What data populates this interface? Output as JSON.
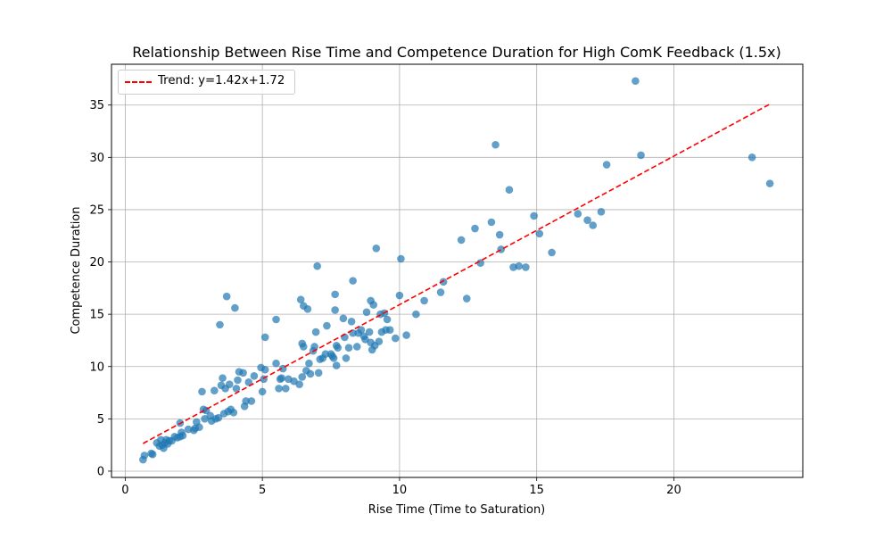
{
  "chart_data": {
    "type": "scatter",
    "title": "Relationship Between Rise Time and Competence Duration for High ComK Feedback (1.5x)",
    "xlabel": "Rise Time (Time to Saturation)",
    "ylabel": "Competence Duration",
    "xlim": [
      -0.5,
      24.7
    ],
    "ylim": [
      -0.6,
      38.9
    ],
    "xticks": [
      0,
      5,
      10,
      15,
      20
    ],
    "yticks": [
      0,
      5,
      10,
      15,
      20,
      25,
      30,
      35
    ],
    "grid": true,
    "legend_position": "top-left",
    "point_color": "#1f77b4",
    "trend": {
      "label": "Trend: y=1.42x+1.72",
      "slope": 1.42,
      "intercept": 1.72,
      "x_range": [
        0.65,
        23.5
      ],
      "color": "#ff0000",
      "style": "dashed"
    },
    "points": [
      [
        0.65,
        1.1
      ],
      [
        0.7,
        1.5
      ],
      [
        0.95,
        1.7
      ],
      [
        1.0,
        1.6
      ],
      [
        1.15,
        2.7
      ],
      [
        1.25,
        2.4
      ],
      [
        1.3,
        3.0
      ],
      [
        1.35,
        2.5
      ],
      [
        1.4,
        2.2
      ],
      [
        1.45,
        2.7
      ],
      [
        1.5,
        3.0
      ],
      [
        1.55,
        2.6
      ],
      [
        1.6,
        2.9
      ],
      [
        1.7,
        2.9
      ],
      [
        1.8,
        3.3
      ],
      [
        1.9,
        3.2
      ],
      [
        2.0,
        3.3
      ],
      [
        2.0,
        4.6
      ],
      [
        2.05,
        3.7
      ],
      [
        2.1,
        3.4
      ],
      [
        2.3,
        4.0
      ],
      [
        2.5,
        3.9
      ],
      [
        2.55,
        4.1
      ],
      [
        2.6,
        4.7
      ],
      [
        2.7,
        4.2
      ],
      [
        2.8,
        7.6
      ],
      [
        2.85,
        5.9
      ],
      [
        2.9,
        5.0
      ],
      [
        2.95,
        5.8
      ],
      [
        3.1,
        5.3
      ],
      [
        3.15,
        4.8
      ],
      [
        3.25,
        7.7
      ],
      [
        3.3,
        5.0
      ],
      [
        3.4,
        5.1
      ],
      [
        3.45,
        14.0
      ],
      [
        3.5,
        8.2
      ],
      [
        3.55,
        8.9
      ],
      [
        3.6,
        5.5
      ],
      [
        3.65,
        7.9
      ],
      [
        3.7,
        16.7
      ],
      [
        3.75,
        5.7
      ],
      [
        3.8,
        8.3
      ],
      [
        3.85,
        5.9
      ],
      [
        3.95,
        5.6
      ],
      [
        4.0,
        15.6
      ],
      [
        4.05,
        7.9
      ],
      [
        4.1,
        8.7
      ],
      [
        4.15,
        9.5
      ],
      [
        4.3,
        9.4
      ],
      [
        4.35,
        6.2
      ],
      [
        4.4,
        6.7
      ],
      [
        4.5,
        8.5
      ],
      [
        4.6,
        6.7
      ],
      [
        4.7,
        9.1
      ],
      [
        4.95,
        9.9
      ],
      [
        5.0,
        7.6
      ],
      [
        5.05,
        8.8
      ],
      [
        5.1,
        9.7
      ],
      [
        5.1,
        12.8
      ],
      [
        5.5,
        10.3
      ],
      [
        5.5,
        14.5
      ],
      [
        5.6,
        7.9
      ],
      [
        5.65,
        8.8
      ],
      [
        5.7,
        8.9
      ],
      [
        5.75,
        9.8
      ],
      [
        5.85,
        7.9
      ],
      [
        5.95,
        8.8
      ],
      [
        6.15,
        8.6
      ],
      [
        6.35,
        8.3
      ],
      [
        6.4,
        16.4
      ],
      [
        6.45,
        9.0
      ],
      [
        6.45,
        12.2
      ],
      [
        6.5,
        11.9
      ],
      [
        6.5,
        15.8
      ],
      [
        6.6,
        9.6
      ],
      [
        6.65,
        15.5
      ],
      [
        6.7,
        10.3
      ],
      [
        6.75,
        9.3
      ],
      [
        6.85,
        11.5
      ],
      [
        6.9,
        11.9
      ],
      [
        6.95,
        13.3
      ],
      [
        7.0,
        19.6
      ],
      [
        7.05,
        9.4
      ],
      [
        7.1,
        10.7
      ],
      [
        7.2,
        10.8
      ],
      [
        7.3,
        11.2
      ],
      [
        7.35,
        13.9
      ],
      [
        7.5,
        11.2
      ],
      [
        7.55,
        11.0
      ],
      [
        7.6,
        10.8
      ],
      [
        7.65,
        15.4
      ],
      [
        7.65,
        16.9
      ],
      [
        7.7,
        10.1
      ],
      [
        7.7,
        12.0
      ],
      [
        7.75,
        11.8
      ],
      [
        7.95,
        14.6
      ],
      [
        8.0,
        12.8
      ],
      [
        8.05,
        10.8
      ],
      [
        8.15,
        11.8
      ],
      [
        8.25,
        14.3
      ],
      [
        8.3,
        18.2
      ],
      [
        8.3,
        13.2
      ],
      [
        8.45,
        11.9
      ],
      [
        8.5,
        13.2
      ],
      [
        8.6,
        13.5
      ],
      [
        8.7,
        12.9
      ],
      [
        8.75,
        12.6
      ],
      [
        8.8,
        15.2
      ],
      [
        8.9,
        13.3
      ],
      [
        8.95,
        12.3
      ],
      [
        8.95,
        16.3
      ],
      [
        9.0,
        11.6
      ],
      [
        9.05,
        15.9
      ],
      [
        9.1,
        12.0
      ],
      [
        9.15,
        21.3
      ],
      [
        9.25,
        12.4
      ],
      [
        9.3,
        15.0
      ],
      [
        9.35,
        13.3
      ],
      [
        9.45,
        15.1
      ],
      [
        9.5,
        13.5
      ],
      [
        9.55,
        14.5
      ],
      [
        9.65,
        13.5
      ],
      [
        9.85,
        12.7
      ],
      [
        10.0,
        16.8
      ],
      [
        10.05,
        20.3
      ],
      [
        10.25,
        13.0
      ],
      [
        10.6,
        15.0
      ],
      [
        10.9,
        16.3
      ],
      [
        11.5,
        17.1
      ],
      [
        11.6,
        18.1
      ],
      [
        12.25,
        22.1
      ],
      [
        12.45,
        16.5
      ],
      [
        12.75,
        23.2
      ],
      [
        12.95,
        19.9
      ],
      [
        13.35,
        23.8
      ],
      [
        13.5,
        31.2
      ],
      [
        13.65,
        22.6
      ],
      [
        13.7,
        21.2
      ],
      [
        14.0,
        26.9
      ],
      [
        14.15,
        19.5
      ],
      [
        14.35,
        19.6
      ],
      [
        14.6,
        19.5
      ],
      [
        14.9,
        24.4
      ],
      [
        15.1,
        22.7
      ],
      [
        15.55,
        20.9
      ],
      [
        16.5,
        24.6
      ],
      [
        16.85,
        24.0
      ],
      [
        17.05,
        23.5
      ],
      [
        17.35,
        24.8
      ],
      [
        17.55,
        29.3
      ],
      [
        18.6,
        37.3
      ],
      [
        18.8,
        30.2
      ],
      [
        22.85,
        30.0
      ],
      [
        23.5,
        27.5
      ]
    ]
  }
}
